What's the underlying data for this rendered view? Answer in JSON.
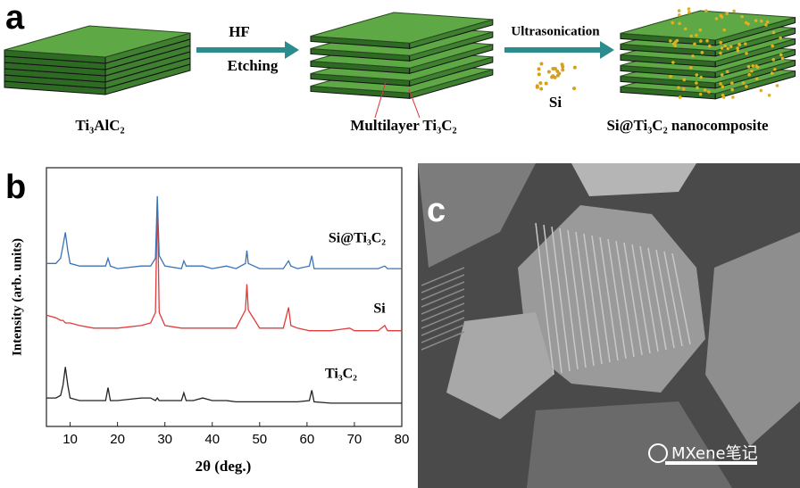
{
  "figure": {
    "panel_a": {
      "letter": "a",
      "step1": "HF",
      "step2": "Etching",
      "step3": "Ultrasonication",
      "si": "Si",
      "label1": "Ti₃AlC₂",
      "label2": "Multilayer Ti₃C₂",
      "label3": "Si@Ti₃C₂ nanocomposite"
    },
    "panel_b_letter": "b",
    "panel_c_letter": "c",
    "watermark": "MXene笔记"
  },
  "chart_data": {
    "type": "line",
    "x_label": "2θ (deg.)",
    "y_label": "Intensity (arb. units)",
    "xlim": [
      5,
      80
    ],
    "xticks": [
      10,
      20,
      30,
      40,
      50,
      60,
      70,
      80
    ],
    "ylim": [
      0,
      100
    ],
    "x": [
      5,
      7,
      8,
      8.5,
      9,
      9.5,
      10,
      12,
      15,
      17.5,
      18,
      18.5,
      20,
      25,
      27,
      28,
      28.4,
      28.8,
      30,
      33.5,
      34,
      34.5,
      36,
      38,
      40,
      43,
      45,
      47,
      47.3,
      47.6,
      50,
      55,
      56.1,
      56.6,
      58,
      60.5,
      61,
      61.5,
      65,
      69,
      70,
      75,
      76.4,
      77,
      80
    ],
    "series": [
      {
        "name": "Ti₃C₂",
        "color": "#222222",
        "values": [
          11,
          11,
          12,
          16,
          23,
          16,
          11,
          10,
          10,
          10,
          15,
          10,
          10,
          11,
          11,
          10,
          11,
          10,
          10,
          10,
          13,
          10,
          10,
          11,
          10,
          10,
          9.5,
          9.5,
          9.5,
          9.5,
          9.5,
          9.5,
          9.5,
          9.5,
          9.5,
          10,
          14,
          9.5,
          9,
          9,
          9,
          9,
          9,
          9,
          9
        ]
      },
      {
        "name": "Si",
        "color": "#e03a3a",
        "values": [
          43,
          42,
          41,
          41,
          40,
          40,
          40,
          39,
          38,
          38,
          38,
          38,
          38,
          39,
          40,
          44,
          88,
          44,
          39,
          38,
          38,
          38,
          38,
          38,
          38,
          38,
          38,
          45,
          55,
          45,
          38,
          38,
          46,
          39,
          38,
          37,
          37,
          37,
          37,
          38,
          37,
          37,
          39,
          37,
          37
        ]
      },
      {
        "name": "Si@Ti₃C₂",
        "color": "#3a73b5",
        "values": [
          63,
          63,
          65,
          70,
          75,
          68,
          63,
          62,
          62,
          62,
          65,
          62,
          61,
          62,
          62,
          65,
          89,
          66,
          62,
          61,
          64,
          62,
          62,
          62,
          61,
          62,
          61,
          63,
          68,
          63,
          61,
          61,
          64,
          62,
          61,
          62,
          66,
          61,
          61,
          61,
          61,
          61,
          62,
          61,
          61
        ]
      }
    ]
  }
}
